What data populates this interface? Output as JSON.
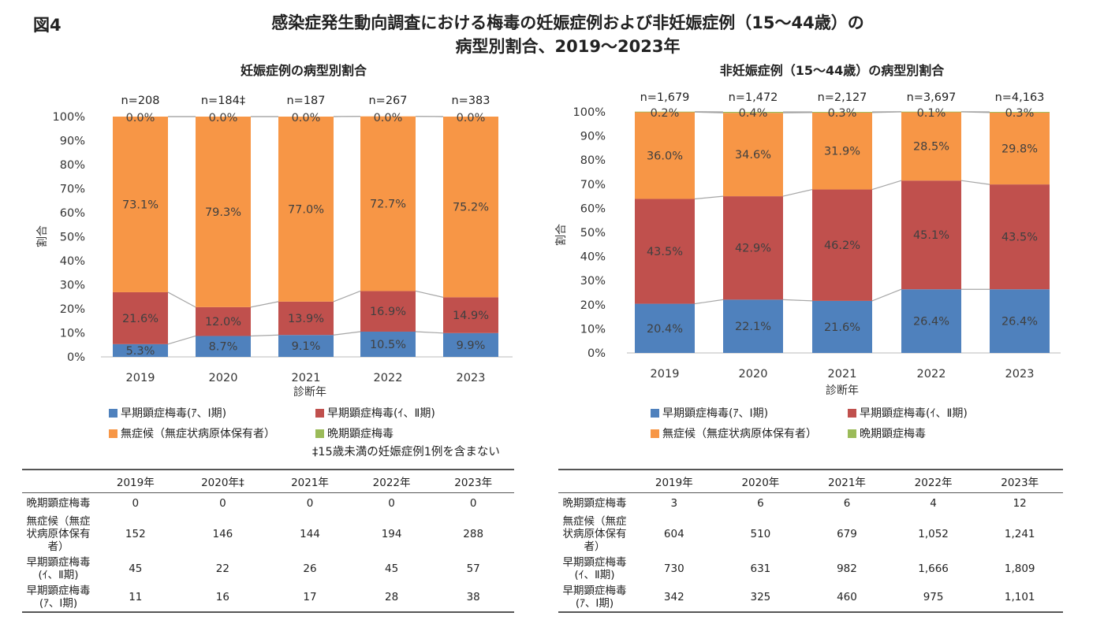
{
  "figure_label": "図4",
  "title_line1": "感染症発生動向調査における梅毒の妊娠症例および非妊娠症例（15〜44歳）の",
  "title_line2": "病型別割合、2019〜2023年",
  "colors": {
    "early_I": "#4f81bd",
    "early_II": "#c0504d",
    "asymptomatic": "#f79646",
    "late": "#9bbb59"
  },
  "legend": {
    "early_I": "早期顕症梅毒(ｱ、Ⅰ期)",
    "early_II": "早期顕症梅毒(ｲ、Ⅱ期)",
    "asymptomatic": "無症候（無症状病原体保有者）",
    "late": "晩期顕症梅毒"
  },
  "footnote": "‡15歳未満の妊娠症例1例を含まない",
  "chart_data": [
    {
      "type": "bar",
      "stacked": true,
      "title": "妊娠症例の病型別割合",
      "xlabel": "診断年",
      "ylabel": "割合",
      "ylim": [
        0,
        100
      ],
      "yticks": [
        "0%",
        "10%",
        "20%",
        "30%",
        "40%",
        "50%",
        "60%",
        "70%",
        "80%",
        "90%",
        "100%"
      ],
      "categories": [
        "2019",
        "2020",
        "2021",
        "2022",
        "2023"
      ],
      "n_labels": [
        "n=208",
        "n=184‡",
        "n=187",
        "n=267",
        "n=383"
      ],
      "series": [
        {
          "name": "早期顕症梅毒(ｱ、Ⅰ期)",
          "key": "early_I",
          "values": [
            5.3,
            8.7,
            9.1,
            10.5,
            9.9
          ]
        },
        {
          "name": "早期顕症梅毒(ｲ、Ⅱ期)",
          "key": "early_II",
          "values": [
            21.6,
            12.0,
            13.9,
            16.9,
            14.9
          ]
        },
        {
          "name": "無症候（無症状病原体保有者）",
          "key": "asymptomatic",
          "values": [
            73.1,
            79.3,
            77.0,
            72.7,
            75.2
          ]
        },
        {
          "name": "晩期顕症梅毒",
          "key": "late",
          "values": [
            0.0,
            0.0,
            0.0,
            0.0,
            0.0
          ]
        }
      ]
    },
    {
      "type": "bar",
      "stacked": true,
      "title": "非妊娠症例（15〜44歳）の病型別割合",
      "xlabel": "診断年",
      "ylabel": "割合",
      "ylim": [
        0,
        100
      ],
      "yticks": [
        "0%",
        "10%",
        "20%",
        "30%",
        "40%",
        "50%",
        "60%",
        "70%",
        "80%",
        "90%",
        "100%"
      ],
      "categories": [
        "2019",
        "2020",
        "2021",
        "2022",
        "2023"
      ],
      "n_labels": [
        "n=1,679",
        "n=1,472",
        "n=2,127",
        "n=3,697",
        "n=4,163"
      ],
      "series": [
        {
          "name": "早期顕症梅毒(ｱ、Ⅰ期)",
          "key": "early_I",
          "values": [
            20.4,
            22.1,
            21.6,
            26.4,
            26.4
          ]
        },
        {
          "name": "早期顕症梅毒(ｲ、Ⅱ期)",
          "key": "early_II",
          "values": [
            43.5,
            42.9,
            46.2,
            45.1,
            43.5
          ]
        },
        {
          "name": "無症候（無症状病原体保有者）",
          "key": "asymptomatic",
          "values": [
            36.0,
            34.6,
            31.9,
            28.5,
            29.8
          ]
        },
        {
          "name": "晩期顕症梅毒",
          "key": "late",
          "values": [
            0.2,
            0.4,
            0.3,
            0.1,
            0.3
          ]
        }
      ]
    }
  ],
  "tables": [
    {
      "headers": [
        "",
        "2019年",
        "2020年‡",
        "2021年",
        "2022年",
        "2023年"
      ],
      "rows": [
        [
          "晩期顕症梅毒",
          "0",
          "0",
          "0",
          "0",
          "0"
        ],
        [
          "無症候（無症状病原体保有者）",
          "152",
          "146",
          "144",
          "194",
          "288"
        ],
        [
          "早期顕症梅毒(ｲ、Ⅱ期)",
          "45",
          "22",
          "26",
          "45",
          "57"
        ],
        [
          "早期顕症梅毒(ｱ、Ⅰ期)",
          "11",
          "16",
          "17",
          "28",
          "38"
        ]
      ]
    },
    {
      "headers": [
        "",
        "2019年",
        "2020年",
        "2021年",
        "2022年",
        "2023年"
      ],
      "rows": [
        [
          "晩期顕症梅毒",
          "3",
          "6",
          "6",
          "4",
          "12"
        ],
        [
          "無症候（無症状病原体保有者）",
          "604",
          "510",
          "679",
          "1,052",
          "1,241"
        ],
        [
          "早期顕症梅毒(ｲ、Ⅱ期)",
          "730",
          "631",
          "982",
          "1,666",
          "1,809"
        ],
        [
          "早期顕症梅毒(ｱ、Ⅰ期)",
          "342",
          "325",
          "460",
          "975",
          "1,101"
        ]
      ]
    }
  ]
}
